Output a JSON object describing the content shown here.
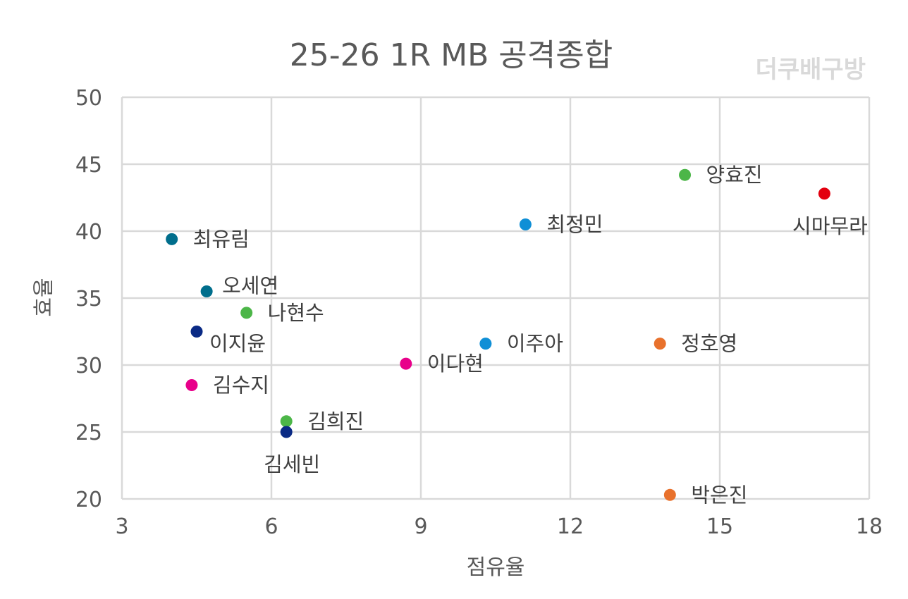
{
  "chart_data": {
    "type": "scatter",
    "title": "25-26  1R MB 공격종합",
    "watermark": "더쿠배구방",
    "xlabel": "점유율",
    "ylabel": "효율",
    "xlim": [
      3,
      18
    ],
    "ylim": [
      20,
      50
    ],
    "xticks": [
      3,
      6,
      9,
      12,
      15,
      18
    ],
    "yticks": [
      20,
      25,
      30,
      35,
      40,
      45,
      50
    ],
    "grid": true,
    "points": [
      {
        "name": "양효진",
        "x": 14.3,
        "y": 44.2,
        "color": "#4cb648",
        "label_pos": "right"
      },
      {
        "name": "시마무라",
        "x": 17.1,
        "y": 42.8,
        "color": "#e3000f",
        "label_pos": "below"
      },
      {
        "name": "최정민",
        "x": 11.1,
        "y": 40.5,
        "color": "#0f8fd6",
        "label_pos": "right"
      },
      {
        "name": "최유림",
        "x": 4.0,
        "y": 39.4,
        "color": "#006e8c",
        "label_pos": "right"
      },
      {
        "name": "오세연",
        "x": 4.7,
        "y": 35.5,
        "color": "#006e8c",
        "label_pos": "upper-right"
      },
      {
        "name": "나현수",
        "x": 5.5,
        "y": 33.9,
        "color": "#4cb648",
        "label_pos": "right"
      },
      {
        "name": "이지윤",
        "x": 4.5,
        "y": 32.5,
        "color": "#0a2a85",
        "label_pos": "lower-right"
      },
      {
        "name": "이주아",
        "x": 10.3,
        "y": 31.6,
        "color": "#0f8fd6",
        "label_pos": "right"
      },
      {
        "name": "정호영",
        "x": 13.8,
        "y": 31.6,
        "color": "#e8712c",
        "label_pos": "right"
      },
      {
        "name": "이다현",
        "x": 8.7,
        "y": 30.1,
        "color": "#e8008a",
        "label_pos": "right"
      },
      {
        "name": "김수지",
        "x": 4.4,
        "y": 28.5,
        "color": "#e8008a",
        "label_pos": "right"
      },
      {
        "name": "김희진",
        "x": 6.3,
        "y": 25.8,
        "color": "#4cb648",
        "label_pos": "right"
      },
      {
        "name": "김세빈",
        "x": 6.3,
        "y": 25.0,
        "color": "#0a2a85",
        "label_pos": "below"
      },
      {
        "name": "박은진",
        "x": 14.0,
        "y": 20.3,
        "color": "#e8712c",
        "label_pos": "right"
      }
    ]
  }
}
